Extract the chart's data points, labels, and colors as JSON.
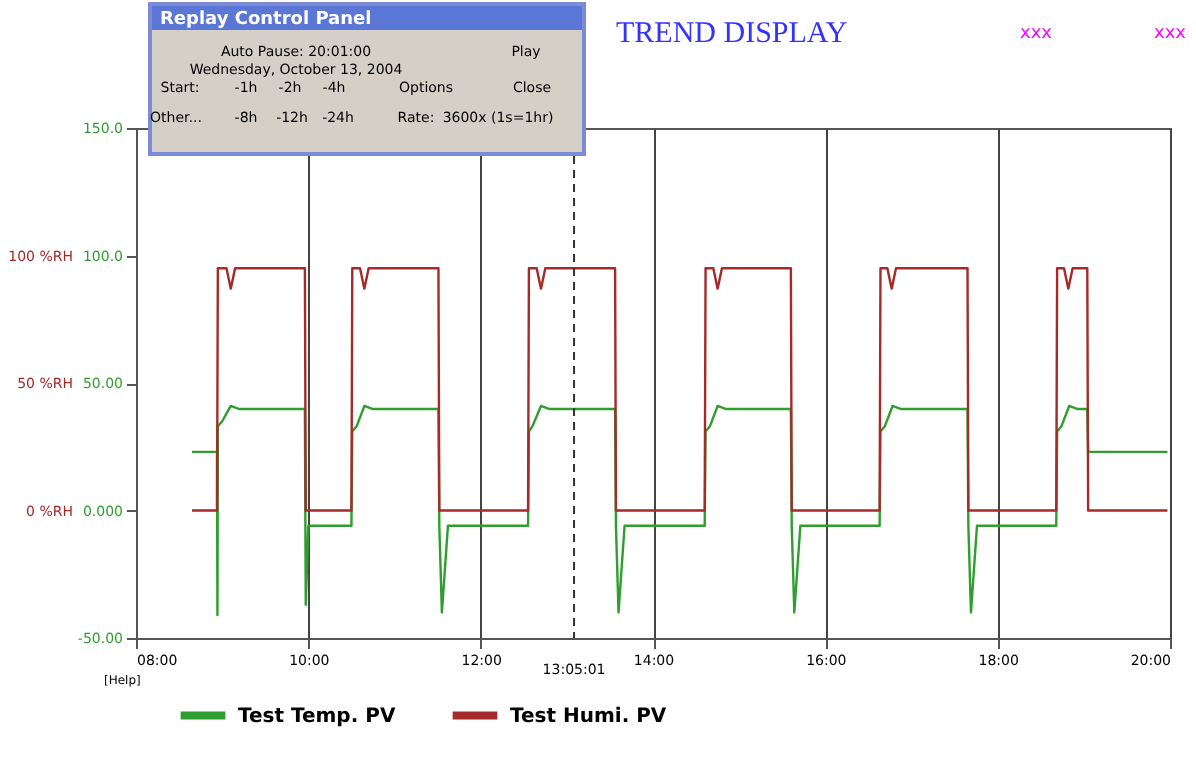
{
  "chart_data": {
    "type": "line",
    "title": "TREND DISPLAY",
    "xlim": [
      8,
      20
    ],
    "xticks": [
      {
        "value": 8,
        "label": "08:00"
      },
      {
        "value": 10,
        "label": "10:00"
      },
      {
        "value": 12,
        "label": "12:00"
      },
      {
        "value": 14,
        "label": "14:00"
      },
      {
        "value": 16,
        "label": "16:00"
      },
      {
        "value": 18,
        "label": "18:00"
      },
      {
        "value": 20,
        "label": "20:00"
      }
    ],
    "ylim": [
      -50,
      150
    ],
    "yticks": [
      {
        "value": -50,
        "label": "-50.00"
      },
      {
        "value": 0,
        "label": "0.000"
      },
      {
        "value": 50,
        "label": "50.00"
      },
      {
        "value": 100,
        "label": "100.0"
      },
      {
        "value": 150,
        "label": "150.0"
      }
    ],
    "y2lim": [
      -50,
      150
    ],
    "y2ticks": [
      {
        "value": 0,
        "label": "0 %RH"
      },
      {
        "value": 50,
        "label": "50 %RH"
      },
      {
        "value": 100,
        "label": "100 %RH"
      }
    ],
    "grid": "x",
    "legend": "bottom",
    "line_style": "solid",
    "ref_lines": [
      {
        "axis": "x",
        "value": 13.0836,
        "label": "13:05:01",
        "line_style": "dashed",
        "color": "#333333"
      }
    ],
    "annotations": [
      "Replay Control Panel",
      "Auto Pause: 20:01:00 Wednesday, October 13, 2004",
      "Play",
      "Start:",
      "-1h",
      "-2h",
      "-4h",
      "Options",
      "Close",
      "Other...",
      "-8h",
      "-12h",
      "-24h",
      "Rate:",
      "3600x (1s=1hr)",
      "xxx",
      "xxx",
      "[Help]"
    ],
    "series": [
      {
        "name": "Test Temp. PV",
        "color": "#2e9e2e",
        "axis": "y",
        "x": [
          8.65,
          8.94,
          8.945,
          8.95,
          9.0,
          9.1,
          9.2,
          9.96,
          9.97,
          10.0,
          10.5,
          10.51,
          10.56,
          10.65,
          10.75,
          11.51,
          11.52,
          11.55,
          11.62,
          12.55,
          12.56,
          12.6,
          12.7,
          12.8,
          13.56,
          13.57,
          13.6,
          13.67,
          14.6,
          14.61,
          14.66,
          14.75,
          14.85,
          15.6,
          15.61,
          15.64,
          15.71,
          16.63,
          16.64,
          16.69,
          16.78,
          16.88,
          17.65,
          17.66,
          17.69,
          17.76,
          18.68,
          18.69,
          18.74,
          18.83,
          18.93,
          19.04,
          19.05,
          19.97
        ],
        "values": [
          23,
          23,
          -41,
          33,
          35,
          41,
          39.8,
          39.8,
          -37,
          -6,
          -6,
          31,
          33,
          41,
          39.8,
          39.8,
          -6,
          -40,
          -6,
          -6,
          31,
          33,
          41,
          39.8,
          39.8,
          -6,
          -40,
          -6,
          -6,
          31,
          33,
          41,
          39.8,
          39.8,
          -6,
          -40,
          -6,
          -6,
          31,
          33,
          41,
          39.8,
          39.8,
          -6,
          -40,
          -6,
          -6,
          31,
          33,
          41,
          39.8,
          39.8,
          23,
          23
        ]
      },
      {
        "name": "Test Humi. PV",
        "color": "#a52a2a",
        "axis": "y2",
        "x": [
          8.65,
          8.94,
          8.95,
          9.05,
          9.1,
          9.15,
          9.96,
          9.97,
          10.5,
          10.51,
          10.6,
          10.65,
          10.7,
          11.51,
          11.52,
          12.55,
          12.56,
          12.65,
          12.7,
          12.75,
          13.56,
          13.57,
          14.6,
          14.61,
          14.7,
          14.75,
          14.8,
          15.6,
          15.61,
          16.63,
          16.64,
          16.72,
          16.77,
          16.82,
          17.65,
          17.66,
          18.68,
          18.69,
          18.77,
          18.82,
          18.87,
          19.04,
          19.05,
          19.97
        ],
        "values": [
          0,
          0,
          95,
          95,
          87,
          95,
          95,
          0,
          0,
          95,
          95,
          87,
          95,
          95,
          0,
          0,
          95,
          95,
          87,
          95,
          95,
          0,
          0,
          95,
          95,
          87,
          95,
          95,
          0,
          0,
          95,
          95,
          87,
          95,
          95,
          0,
          0,
          95,
          95,
          87,
          95,
          95,
          0,
          0
        ]
      }
    ]
  }
}
